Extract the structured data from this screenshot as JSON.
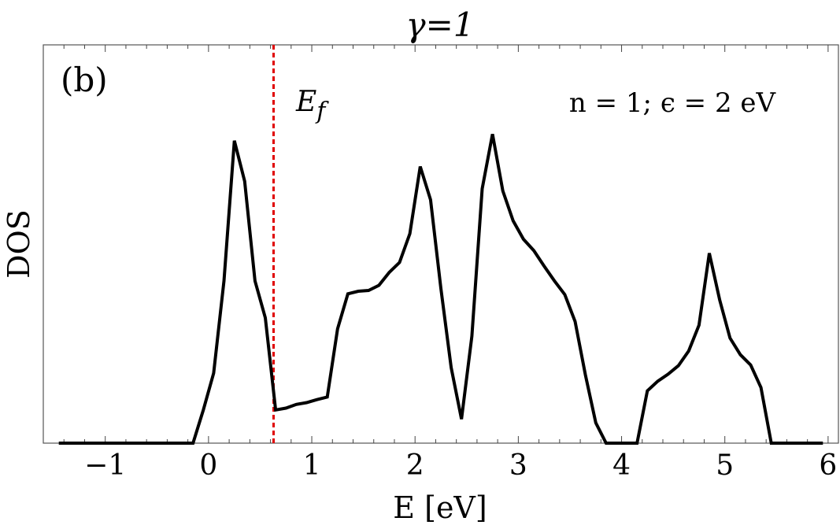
{
  "chart_data": {
    "type": "line",
    "title": "γ=1",
    "panel_label": "(b)",
    "xlabel": "E [eV]",
    "ylabel": "DOS",
    "xlim": [
      -1.6,
      6.1
    ],
    "ylim": [
      0,
      1.08
    ],
    "x_ticks": [
      -1,
      0,
      1,
      2,
      3,
      4,
      5,
      6
    ],
    "x_tick_labels": [
      "−1",
      "0",
      "1",
      "2",
      "3",
      "4",
      "5",
      "6"
    ],
    "y_ticks_shown": false,
    "grid": false,
    "annotation": "n = 1; ϵ = 2 eV",
    "fermi_level": {
      "x": 0.63,
      "label_main": "E",
      "label_sub": "f",
      "color": "#e00000",
      "style": "dashed"
    },
    "series": [
      {
        "color": "#000000",
        "x": [
          -1.45,
          -0.15,
          -0.05,
          0.05,
          0.15,
          0.25,
          0.35,
          0.45,
          0.55,
          0.65,
          0.75,
          0.85,
          0.95,
          1.05,
          1.15,
          1.25,
          1.35,
          1.45,
          1.55,
          1.65,
          1.75,
          1.85,
          1.95,
          2.05,
          2.15,
          2.25,
          2.35,
          2.45,
          2.55,
          2.65,
          2.75,
          2.85,
          2.95,
          3.05,
          3.15,
          3.25,
          3.35,
          3.45,
          3.55,
          3.65,
          3.75,
          3.85,
          3.95,
          4.05,
          4.15,
          4.25,
          4.35,
          4.45,
          4.55,
          4.65,
          4.75,
          4.85,
          4.95,
          5.05,
          5.15,
          5.25,
          5.35,
          5.45,
          5.95
        ],
        "y": [
          0,
          0,
          0.09,
          0.19,
          0.44,
          0.82,
          0.71,
          0.44,
          0.34,
          0.09,
          0.095,
          0.105,
          0.11,
          0.118,
          0.125,
          0.31,
          0.405,
          0.412,
          0.414,
          0.428,
          0.463,
          0.49,
          0.568,
          0.75,
          0.66,
          0.42,
          0.205,
          0.065,
          0.29,
          0.69,
          0.838,
          0.684,
          0.603,
          0.553,
          0.522,
          0.48,
          0.44,
          0.403,
          0.33,
          0.185,
          0.055,
          0,
          0,
          0,
          0,
          0.142,
          0.168,
          0.187,
          0.21,
          0.25,
          0.32,
          0.515,
          0.388,
          0.285,
          0.24,
          0.212,
          0.151,
          0,
          0
        ]
      }
    ]
  }
}
